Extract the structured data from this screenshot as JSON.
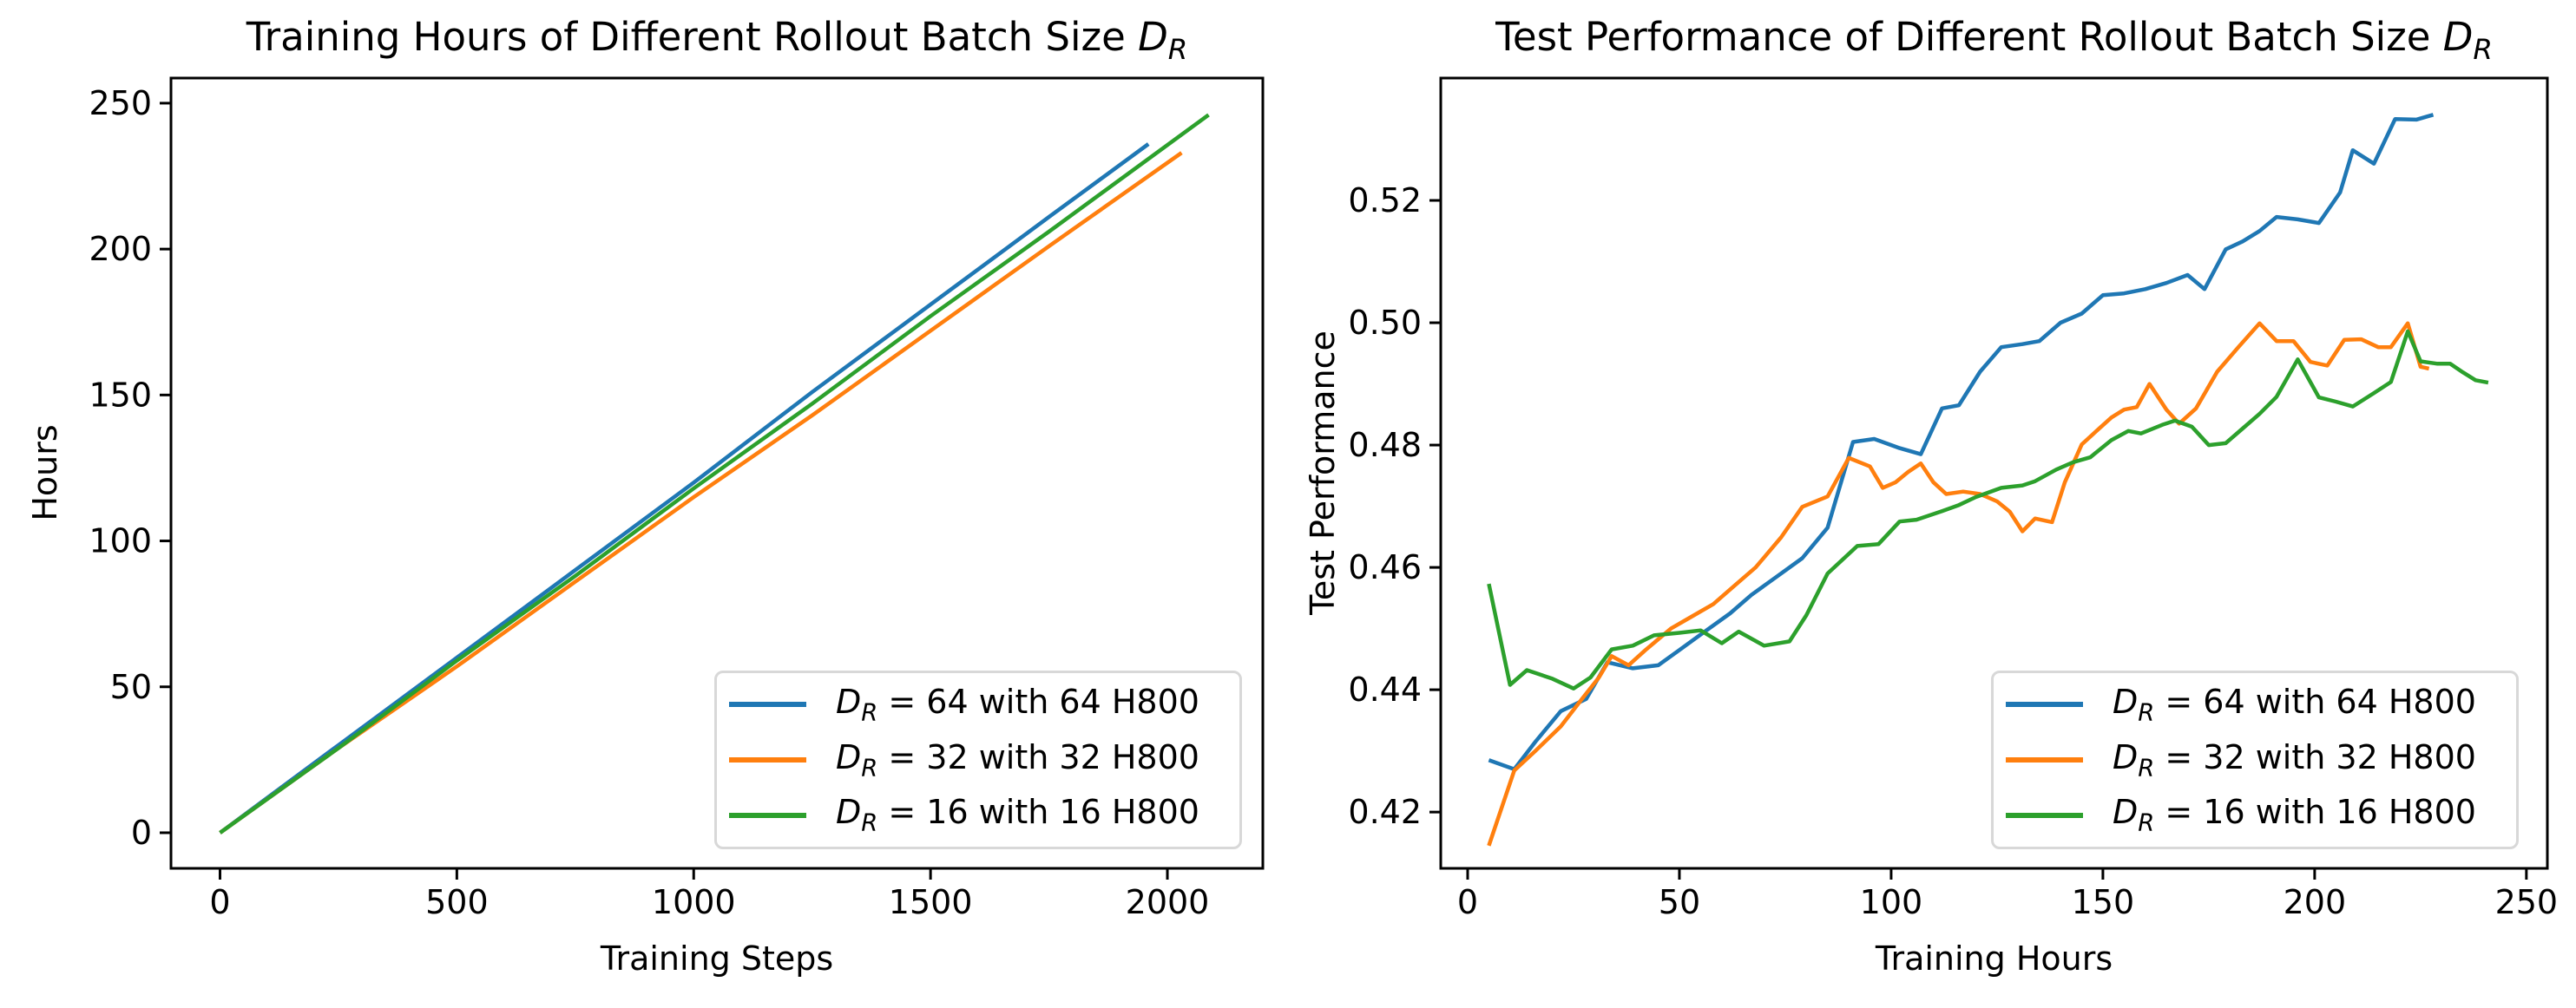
{
  "figure": {
    "background": "#ffffff",
    "text_color": "#000000",
    "spine_color": "#000000",
    "legend_border_color": "#d8d8d8",
    "series_colors": {
      "blue": "#1f77b4",
      "orange": "#ff7f0e",
      "green": "#2ca02c"
    }
  },
  "chart_data": [
    {
      "type": "line",
      "title": "Training Hours of Different Rollout Batch Size D_R",
      "xlabel": "Training Steps",
      "ylabel": "Hours",
      "xlim": [
        -103.5,
        2201.5
      ],
      "ylim": [
        -12.2,
        258.6
      ],
      "xticks": [
        0,
        500,
        1000,
        1500,
        2000
      ],
      "xtick_labels": [
        "0",
        "500",
        "1000",
        "1500",
        "2000"
      ],
      "yticks": [
        0,
        50,
        100,
        150,
        200,
        250
      ],
      "ytick_labels": [
        "0",
        "50",
        "100",
        "150",
        "200",
        "250"
      ],
      "grid": false,
      "legend_position": "lower right",
      "series": [
        {
          "name": "D_R = 64 with 64 H800",
          "color": "#1f77b4",
          "x": [
            0,
            250,
            500,
            750,
            1000,
            1250,
            1500,
            1750,
            1960
          ],
          "y": [
            0,
            30,
            60,
            90,
            120,
            151,
            181,
            211,
            236
          ]
        },
        {
          "name": "D_R = 32 with 32 H800",
          "color": "#ff7f0e",
          "x": [
            0,
            250,
            500,
            750,
            1000,
            1250,
            1500,
            1750,
            2030
          ],
          "y": [
            0,
            29,
            57,
            86,
            115,
            143,
            172,
            201,
            233
          ]
        },
        {
          "name": "D_R = 16 with 16 H800",
          "color": "#2ca02c",
          "x": [
            0,
            250,
            500,
            750,
            1000,
            1250,
            1500,
            1750,
            2087
          ],
          "y": [
            0,
            29,
            59,
            88,
            118,
            147,
            177,
            206,
            246
          ]
        }
      ]
    },
    {
      "type": "line",
      "title": "Test Performance of Different Rollout Batch Size D_R",
      "xlabel": "Training Hours",
      "ylabel": "Test Performance",
      "xlim": [
        -6.35,
        254.95
      ],
      "ylim": [
        0.4108,
        0.54
      ],
      "xticks": [
        0,
        50,
        100,
        150,
        200,
        250
      ],
      "xtick_labels": [
        "0",
        "50",
        "100",
        "150",
        "200",
        "250"
      ],
      "yticks": [
        0.42,
        0.44,
        0.46,
        0.48,
        0.5,
        0.52
      ],
      "ytick_labels": [
        "0.42",
        "0.44",
        "0.46",
        "0.48",
        "0.50",
        "0.52"
      ],
      "grid": false,
      "legend_position": "lower right",
      "series": [
        {
          "name": "D_R = 64 with 64 H800",
          "color": "#1f77b4",
          "x": [
            5,
            11,
            16,
            22,
            28,
            33,
            39,
            45,
            50,
            56,
            62,
            67,
            73,
            79,
            85,
            91,
            96,
            102,
            107,
            112,
            116,
            121,
            126,
            131,
            135,
            140,
            145,
            150,
            155,
            160,
            165,
            170,
            174,
            179,
            183,
            187,
            191,
            196,
            201,
            206,
            209,
            214,
            219,
            224,
            228
          ],
          "y": [
            0.4285,
            0.427,
            0.4315,
            0.4365,
            0.4385,
            0.4445,
            0.4435,
            0.444,
            0.4465,
            0.4495,
            0.4525,
            0.4555,
            0.4585,
            0.4615,
            0.4665,
            0.4805,
            0.481,
            0.4795,
            0.4785,
            0.486,
            0.4865,
            0.492,
            0.496,
            0.4965,
            0.497,
            0.5,
            0.5015,
            0.5045,
            0.5048,
            0.5055,
            0.5065,
            0.5078,
            0.5055,
            0.512,
            0.5133,
            0.515,
            0.5173,
            0.5169,
            0.5163,
            0.5213,
            0.5282,
            0.526,
            0.5333,
            0.5332,
            0.534
          ]
        },
        {
          "name": "D_R = 32 with 32 H800",
          "color": "#ff7f0e",
          "x": [
            5,
            11,
            16,
            22,
            27,
            31,
            34,
            38,
            42,
            48,
            53,
            58,
            63,
            68,
            74,
            79,
            85,
            90,
            95,
            98,
            101,
            104,
            107,
            110,
            113,
            117,
            121,
            125,
            128,
            131,
            134,
            138,
            141,
            145,
            148,
            152,
            155,
            158,
            161,
            165,
            168,
            172,
            177,
            182,
            187,
            191,
            195,
            199,
            203,
            207,
            211,
            215,
            218,
            222,
            225,
            227
          ],
          "y": [
            0.4145,
            0.4268,
            0.43,
            0.434,
            0.4385,
            0.442,
            0.4455,
            0.444,
            0.4465,
            0.45,
            0.452,
            0.454,
            0.457,
            0.46,
            0.4649,
            0.4699,
            0.4716,
            0.4779,
            0.4765,
            0.473,
            0.4739,
            0.4756,
            0.477,
            0.4739,
            0.472,
            0.4724,
            0.472,
            0.4708,
            0.4691,
            0.4659,
            0.468,
            0.4674,
            0.4739,
            0.4801,
            0.482,
            0.4845,
            0.4858,
            0.4862,
            0.49,
            0.4858,
            0.4835,
            0.486,
            0.492,
            0.496,
            0.4999,
            0.497,
            0.497,
            0.4936,
            0.493,
            0.4972,
            0.4973,
            0.496,
            0.496,
            0.4999,
            0.4928,
            0.4925
          ]
        },
        {
          "name": "D_R = 16 with 16 H800",
          "color": "#2ca02c",
          "x": [
            5,
            10,
            14,
            20,
            25,
            29,
            34,
            39,
            44,
            50,
            55,
            60,
            64,
            70,
            76,
            80,
            85,
            92,
            97,
            102,
            106,
            112,
            116,
            120,
            126,
            131,
            134,
            139,
            143,
            147,
            152,
            156,
            159,
            164,
            167,
            171,
            175,
            179,
            183,
            187,
            191,
            196,
            201,
            205,
            209,
            214,
            218,
            222,
            225,
            229,
            232,
            235,
            238,
            241
          ],
          "y": [
            0.4573,
            0.4408,
            0.4432,
            0.4418,
            0.4402,
            0.442,
            0.4466,
            0.4472,
            0.4489,
            0.4493,
            0.4497,
            0.4476,
            0.4495,
            0.4472,
            0.4479,
            0.4522,
            0.459,
            0.4635,
            0.4638,
            0.4675,
            0.4678,
            0.4692,
            0.4702,
            0.4715,
            0.473,
            0.4734,
            0.4741,
            0.476,
            0.4772,
            0.478,
            0.4808,
            0.4823,
            0.4819,
            0.4833,
            0.484,
            0.483,
            0.48,
            0.4803,
            0.4827,
            0.4851,
            0.4879,
            0.494,
            0.4878,
            0.4871,
            0.4863,
            0.4885,
            0.4903,
            0.4986,
            0.4937,
            0.4933,
            0.4933,
            0.4919,
            0.4906,
            0.4902
          ]
        }
      ]
    }
  ]
}
